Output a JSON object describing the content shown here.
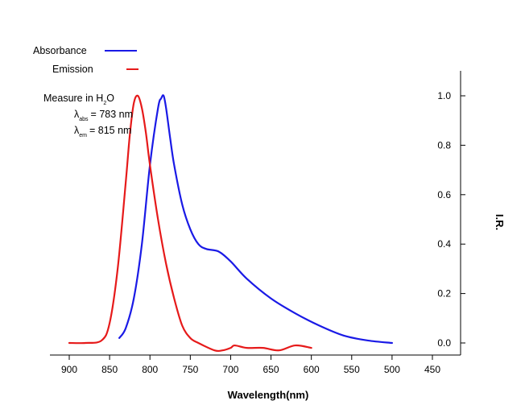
{
  "chart_data": {
    "type": "line",
    "xlabel": "Wavelength(nm)",
    "ylabel": "I.R.",
    "x_reversed": true,
    "xlim": [
      450,
      900
    ],
    "ylim": [
      0.0,
      1.0
    ],
    "xticks": [
      450,
      500,
      550,
      600,
      650,
      700,
      750,
      800,
      850,
      900
    ],
    "xtick_labels": [
      "450",
      "500",
      "550",
      "600",
      "650",
      "700",
      "750",
      "800",
      "850",
      "900"
    ],
    "yticks": [
      0.0,
      0.2,
      0.4,
      0.6,
      0.8,
      1.0
    ],
    "ytick_labels": [
      "0.0",
      "0.2",
      "0.4",
      "0.6",
      "0.8",
      "1.0"
    ],
    "grid": false,
    "legend_position": "top-left",
    "series": [
      {
        "name": "Absorbance",
        "color": "#1a1ae6",
        "x": [
          500,
          530,
          560,
          590,
          620,
          650,
          680,
          700,
          715,
          730,
          740,
          750,
          760,
          770,
          775,
          780,
          783,
          786,
          790,
          800,
          810,
          820,
          830,
          838
        ],
        "y": [
          0.0,
          0.01,
          0.03,
          0.07,
          0.12,
          0.18,
          0.26,
          0.33,
          0.37,
          0.38,
          0.4,
          0.46,
          0.56,
          0.72,
          0.83,
          0.95,
          1.0,
          0.99,
          0.95,
          0.72,
          0.4,
          0.18,
          0.06,
          0.02
        ]
      },
      {
        "name": "Emission",
        "color": "#e61a1a",
        "x": [
          600,
          620,
          640,
          660,
          680,
          695,
          700,
          710,
          720,
          740,
          750,
          760,
          770,
          780,
          790,
          800,
          805,
          810,
          815,
          820,
          825,
          830,
          840,
          850,
          860,
          880,
          900
        ],
        "y": [
          -0.02,
          -0.01,
          -0.03,
          -0.02,
          -0.02,
          -0.01,
          -0.02,
          -0.03,
          -0.03,
          0.0,
          0.02,
          0.07,
          0.18,
          0.32,
          0.5,
          0.72,
          0.85,
          0.95,
          1.0,
          0.97,
          0.84,
          0.65,
          0.3,
          0.08,
          0.01,
          0.0,
          0.0
        ]
      }
    ],
    "annotations": {
      "line1_prefix": "Measure in H",
      "line1_sub": "2",
      "line1_suffix": "O",
      "line2_symbol": "λ",
      "line2_sub": "abs",
      "line2_value": "= 783 nm",
      "line3_symbol": "λ",
      "line3_sub": "em",
      "line3_value": "= 815 nm"
    }
  }
}
